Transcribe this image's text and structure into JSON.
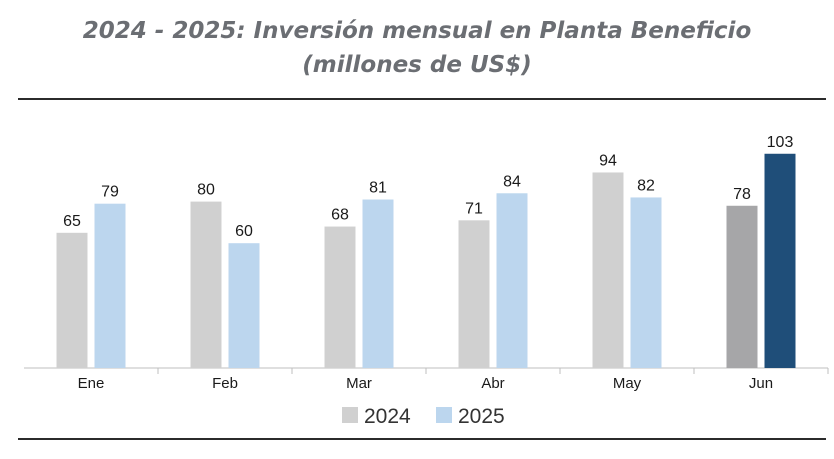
{
  "chart_data": {
    "type": "bar",
    "title_line1": "2024 - 2025: Inversión mensual en Planta Beneficio",
    "title_line2": "(millones de US$)",
    "categories": [
      "Ene",
      "Feb",
      "Mar",
      "Abr",
      "May",
      "Jun"
    ],
    "series": [
      {
        "name": "2024",
        "values": [
          65,
          80,
          68,
          71,
          94,
          78
        ],
        "color": "#d0d0d0",
        "highlight_color": "#a6a6a8"
      },
      {
        "name": "2025",
        "values": [
          79,
          60,
          81,
          84,
          82,
          103
        ],
        "color": "#bcd6ee",
        "highlight_color": "#1f4e79"
      }
    ],
    "highlight_category": "Jun",
    "ylim": [
      0,
      115
    ],
    "grid": false,
    "legend": "bottom",
    "xlabel": "",
    "ylabel": ""
  }
}
